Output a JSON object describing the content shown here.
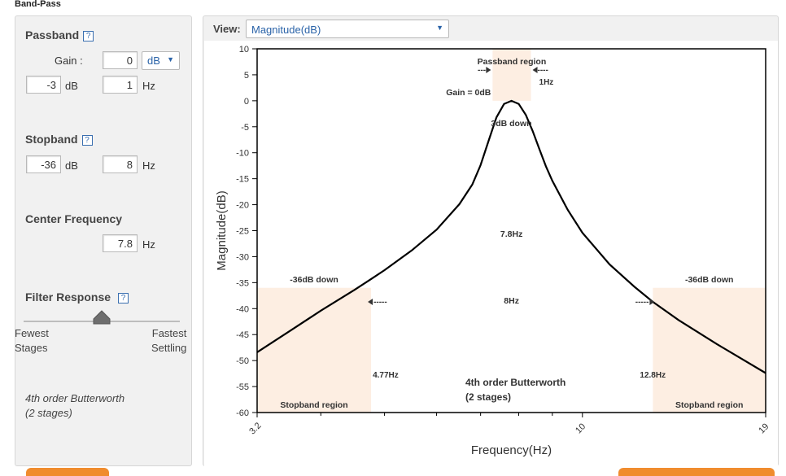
{
  "page": {
    "heading": "Band-Pass"
  },
  "passband": {
    "title": "Passband",
    "help": "?",
    "gain_label": "Gain :",
    "gain_value": "0",
    "gain_unit": "dB",
    "attenuation_value": "-3",
    "attenuation_unit": "dB",
    "frequency_value": "1",
    "frequency_unit": "Hz"
  },
  "stopband": {
    "title": "Stopband",
    "help": "?",
    "attenuation_value": "-36",
    "attenuation_unit": "dB",
    "frequency_value": "8",
    "frequency_unit": "Hz"
  },
  "center_frequency": {
    "title": "Center Frequency",
    "value": "7.8",
    "unit": "Hz"
  },
  "filter_response": {
    "title": "Filter Response",
    "help": "?",
    "slider_value": 0.5,
    "left_label_line1": "Fewest",
    "left_label_line2": "Stages",
    "right_label_line1": "Fastest",
    "right_label_line2": "Settling",
    "summary_line1": "4th order Butterworth",
    "summary_line2": "(2 stages)"
  },
  "view": {
    "label": "View:",
    "selected": "Magnitude(dB)"
  },
  "colors": {
    "region_fill": "#fdeee2",
    "curve": "#000000",
    "accent": "#2a63a8",
    "button": "#f08c2e"
  },
  "chart_data": {
    "type": "line",
    "xlabel": "Frequency(Hz)",
    "ylabel": "Magnitude(dB)",
    "x_scale": "log",
    "xlim": [
      3.2,
      19
    ],
    "ylim": [
      -60,
      10
    ],
    "x_ticks": [
      {
        "value": 3.2,
        "label": "3.2"
      },
      {
        "value": 10,
        "label": "10"
      },
      {
        "value": 19,
        "label": "19"
      }
    ],
    "x_minor_ticks": [
      4,
      5,
      6,
      7,
      8,
      9
    ],
    "y_ticks": [
      10,
      5,
      0,
      -5,
      -10,
      -15,
      -20,
      -25,
      -30,
      -35,
      -40,
      -45,
      -50,
      -55,
      -60
    ],
    "series": [
      {
        "x": [
          3.2,
          3.6,
          4.0,
          4.5,
          4.77,
          5.0,
          5.5,
          6.0,
          6.5,
          6.8,
          7.0,
          7.2,
          7.4,
          7.6,
          7.8,
          8.0,
          8.2,
          8.4,
          8.6,
          8.8,
          9.0,
          9.5,
          10,
          11,
          12,
          12.8,
          14,
          16,
          19
        ],
        "y": [
          -48.4,
          -44.2,
          -40.4,
          -36.4,
          -34.3,
          -32.6,
          -28.8,
          -24.8,
          -19.9,
          -16.1,
          -12.4,
          -7.7,
          -3.2,
          -0.6,
          0,
          -0.6,
          -2.7,
          -5.8,
          -9.3,
          -12.6,
          -15.4,
          -21.0,
          -25.4,
          -31.5,
          -35.8,
          -38.7,
          -42.2,
          -46.8,
          -52.4
        ]
      }
    ],
    "regions": [
      {
        "kind": "passband",
        "x0": 7.3,
        "x1": 8.35,
        "y0": 0,
        "y1": 10
      },
      {
        "kind": "stopband",
        "x0": 3.2,
        "x1": 4.77,
        "y0": -60,
        "y1": -36
      },
      {
        "kind": "stopband",
        "x0": 12.8,
        "x1": 19,
        "y0": -60,
        "y1": -36
      }
    ],
    "annotations": {
      "passband_region": "Passband region",
      "passband_width": "1Hz",
      "gain": "Gain = 0dB",
      "three_db_down": "3dB down",
      "center": "7.8Hz",
      "stop_width": "8Hz",
      "left_stop_down": "-36dB down",
      "right_stop_down": "-36dB down",
      "left_stop_freq": "4.77Hz",
      "right_stop_freq": "12.8Hz",
      "left_stop_region": "Stopband region",
      "right_stop_region": "Stopband region",
      "filter_line1": "4th order Butterworth",
      "filter_line2": "(2 stages)",
      "dashes_short": "----",
      "dashes_long": "-----"
    }
  }
}
